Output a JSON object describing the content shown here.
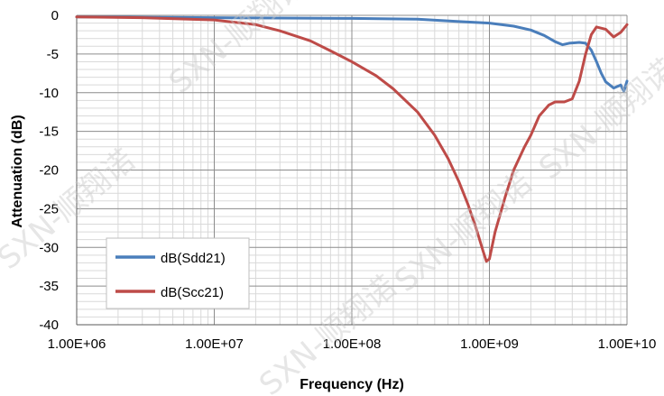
{
  "chart_data": {
    "type": "line",
    "xlabel": "Frequency (Hz)",
    "ylabel": "Attenuation (dB)",
    "x_scale": "log",
    "xlim": [
      1000000,
      10000000000
    ],
    "ylim": [
      -40,
      0
    ],
    "x_ticks": [
      1000000,
      10000000,
      100000000,
      1000000000,
      10000000000
    ],
    "x_tick_labels": [
      "1.00E+06",
      "1.00E+07",
      "1.00E+08",
      "1.00E+09",
      "1.00E+10"
    ],
    "y_ticks": [
      0,
      -5,
      -10,
      -15,
      -20,
      -25,
      -30,
      -35,
      -40
    ],
    "y_tick_labels": [
      "0",
      "-5",
      "-10",
      "-15",
      "-20",
      "-25",
      "-30",
      "-35",
      "-40"
    ],
    "grid": true,
    "legend": "lower-left",
    "watermark": "SXN-顺翔诺",
    "series": [
      {
        "name": "dB(Sdd21)",
        "color": "#4a7ebb",
        "x": [
          1000000,
          3000000,
          10000000,
          30000000,
          100000000,
          300000000,
          600000000,
          1000000000,
          1500000000,
          2000000000,
          2500000000,
          3000000000,
          3400000000,
          3800000000,
          4500000000,
          5000000000,
          5500000000,
          6000000000,
          6500000000,
          7000000000,
          8000000000,
          9000000000,
          9500000000,
          10000000000
        ],
        "y": [
          -0.2,
          -0.25,
          -0.3,
          -0.35,
          -0.4,
          -0.5,
          -0.8,
          -1.0,
          -1.4,
          -1.9,
          -2.6,
          -3.4,
          -3.8,
          -3.6,
          -3.5,
          -3.6,
          -4.5,
          -6.0,
          -7.5,
          -8.6,
          -9.4,
          -9.0,
          -9.8,
          -8.5
        ]
      },
      {
        "name": "dB(Scc21)",
        "color": "#be4b48",
        "x": [
          1000000,
          3000000,
          10000000,
          20000000,
          30000000,
          50000000,
          70000000,
          100000000,
          150000000,
          200000000,
          300000000,
          400000000,
          500000000,
          600000000,
          700000000,
          800000000,
          900000000,
          950000000,
          1000000000,
          1100000000,
          1300000000,
          1500000000,
          1800000000,
          2000000000,
          2300000000,
          2700000000,
          3000000000,
          3500000000,
          4000000000,
          4500000000,
          5000000000,
          5500000000,
          6000000000,
          7000000000,
          8000000000,
          9000000000,
          10000000000
        ],
        "y": [
          -0.2,
          -0.3,
          -0.6,
          -1.2,
          -2.0,
          -3.3,
          -4.6,
          -6.0,
          -7.8,
          -9.5,
          -12.5,
          -15.5,
          -18.5,
          -21.5,
          -24.5,
          -27.5,
          -30.5,
          -31.8,
          -31.5,
          -28.0,
          -23.5,
          -20.0,
          -17.0,
          -15.5,
          -13.0,
          -11.6,
          -11.2,
          -11.2,
          -10.8,
          -8.5,
          -5.0,
          -2.5,
          -1.5,
          -1.8,
          -2.8,
          -2.2,
          -1.2
        ]
      }
    ]
  }
}
